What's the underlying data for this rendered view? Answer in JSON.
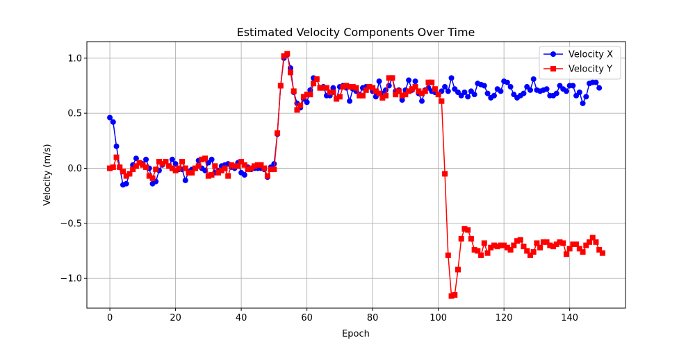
{
  "chart_data": {
    "type": "line",
    "title": "Estimated Velocity Components Over Time",
    "xlabel": "Epoch",
    "ylabel": "Velocity (m/s)",
    "xlim": [
      -7,
      157
    ],
    "ylim": [
      -1.27,
      1.15
    ],
    "xticks": [
      0,
      20,
      40,
      60,
      80,
      100,
      120,
      140
    ],
    "yticks": [
      -1.0,
      -0.5,
      0.0,
      0.5,
      1.0
    ],
    "ytick_labels": [
      "−1.0",
      "−0.5",
      "0.0",
      "0.5",
      "1.0"
    ],
    "grid": true,
    "legend_position": "top-right",
    "x_start": 0,
    "x_step": 1,
    "series": [
      {
        "name": "Velocity X",
        "color": "#0000ff",
        "marker": "circle",
        "values": [
          0.46,
          0.42,
          0.2,
          0.01,
          -0.15,
          -0.14,
          -0.05,
          0.03,
          0.09,
          0.05,
          0.04,
          0.08,
          0.0,
          -0.14,
          -0.12,
          -0.02,
          0.03,
          0.06,
          0.02,
          0.08,
          0.04,
          -0.01,
          -0.01,
          -0.11,
          -0.03,
          -0.01,
          0.0,
          0.07,
          0.0,
          -0.02,
          0.05,
          0.08,
          -0.04,
          -0.02,
          0.02,
          0.03,
          0.04,
          0.01,
          0.0,
          0.05,
          -0.04,
          -0.06,
          0.01,
          -0.01,
          0.0,
          0.0,
          0.0,
          -0.01,
          -0.08,
          0.01,
          0.04,
          0.31,
          0.75,
          1.0,
          1.03,
          0.91,
          0.69,
          0.59,
          0.55,
          0.63,
          0.6,
          0.71,
          0.82,
          0.81,
          0.73,
          0.74,
          0.66,
          0.66,
          0.73,
          0.63,
          0.74,
          0.75,
          0.73,
          0.61,
          0.72,
          0.7,
          0.67,
          0.73,
          0.74,
          0.74,
          0.7,
          0.65,
          0.79,
          0.68,
          0.71,
          0.75,
          0.82,
          0.7,
          0.71,
          0.62,
          0.71,
          0.8,
          0.71,
          0.79,
          0.68,
          0.61,
          0.71,
          0.73,
          0.7,
          0.69,
          0.67,
          0.7,
          0.74,
          0.7,
          0.82,
          0.72,
          0.69,
          0.66,
          0.69,
          0.65,
          0.7,
          0.67,
          0.77,
          0.76,
          0.75,
          0.68,
          0.64,
          0.66,
          0.72,
          0.7,
          0.79,
          0.78,
          0.74,
          0.67,
          0.64,
          0.66,
          0.68,
          0.74,
          0.71,
          0.81,
          0.71,
          0.7,
          0.71,
          0.72,
          0.66,
          0.66,
          0.68,
          0.75,
          0.72,
          0.7,
          0.75,
          0.75,
          0.66,
          0.69,
          0.59,
          0.65,
          0.77,
          0.78,
          0.78,
          0.73
        ]
      },
      {
        "name": "Velocity Y",
        "color": "#ff0000",
        "marker": "square",
        "values": [
          0.0,
          0.01,
          0.1,
          0.01,
          -0.03,
          -0.07,
          -0.05,
          -0.01,
          0.02,
          0.05,
          0.03,
          0.01,
          -0.07,
          -0.09,
          -0.01,
          0.06,
          0.04,
          0.06,
          0.02,
          0.0,
          -0.02,
          0.0,
          0.06,
          0.0,
          -0.04,
          -0.04,
          0.0,
          0.02,
          0.08,
          0.09,
          -0.07,
          -0.06,
          0.02,
          -0.04,
          -0.02,
          0.0,
          -0.07,
          0.03,
          0.02,
          0.02,
          0.06,
          0.03,
          -0.01,
          0.0,
          0.02,
          0.03,
          0.03,
          0.0,
          -0.07,
          -0.01,
          -0.01,
          0.32,
          0.75,
          1.02,
          1.04,
          0.87,
          0.7,
          0.53,
          0.57,
          0.65,
          0.67,
          0.67,
          0.77,
          0.81,
          0.73,
          0.73,
          0.73,
          0.69,
          0.69,
          0.63,
          0.65,
          0.74,
          0.75,
          0.74,
          0.74,
          0.73,
          0.66,
          0.66,
          0.71,
          0.74,
          0.73,
          0.7,
          0.68,
          0.64,
          0.66,
          0.82,
          0.82,
          0.67,
          0.7,
          0.66,
          0.67,
          0.7,
          0.72,
          0.74,
          0.7,
          0.68,
          0.7,
          0.78,
          0.78,
          0.72,
          0.67,
          0.61,
          -0.05,
          -0.79,
          -1.16,
          -1.15,
          -0.92,
          -0.64,
          -0.55,
          -0.56,
          -0.64,
          -0.74,
          -0.75,
          -0.79,
          -0.68,
          -0.77,
          -0.72,
          -0.7,
          -0.71,
          -0.7,
          -0.7,
          -0.72,
          -0.74,
          -0.7,
          -0.66,
          -0.65,
          -0.71,
          -0.75,
          -0.79,
          -0.76,
          -0.68,
          -0.72,
          -0.67,
          -0.67,
          -0.7,
          -0.71,
          -0.69,
          -0.67,
          -0.68,
          -0.78,
          -0.73,
          -0.69,
          -0.69,
          -0.73,
          -0.76,
          -0.7,
          -0.67,
          -0.63,
          -0.67,
          -0.74,
          -0.77
        ]
      }
    ]
  }
}
